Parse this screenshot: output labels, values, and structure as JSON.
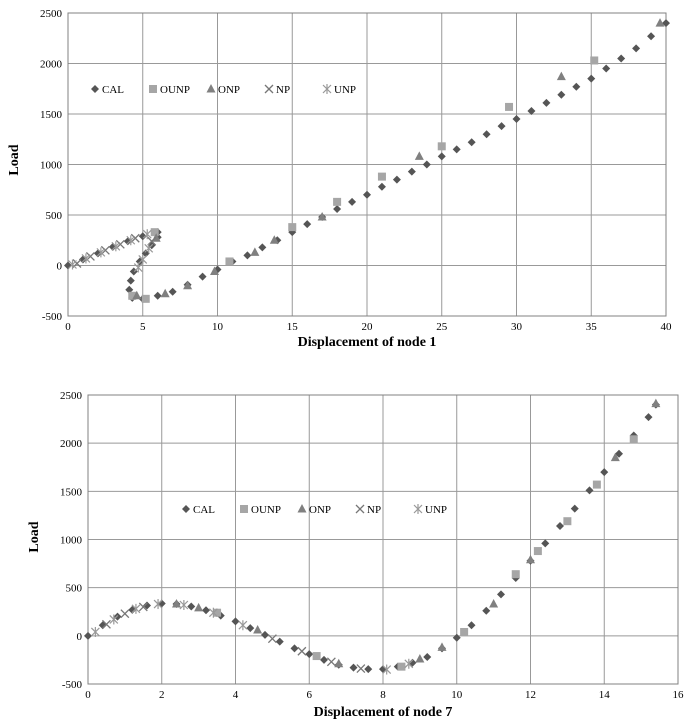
{
  "colors": {
    "CAL": "#555555",
    "OUNP": "#a6a6a6",
    "ONP": "#808080",
    "NP": "#777777",
    "UNP": "#999999",
    "grid": "#999999"
  },
  "chart_data": [
    {
      "type": "scatter",
      "title": "",
      "xlabel": "Displacement of node 1",
      "ylabel": "Load",
      "xlim": [
        0,
        40
      ],
      "ylim": [
        -500,
        2500
      ],
      "xticks": [
        "0",
        "5",
        "10",
        "15",
        "20",
        "25",
        "30",
        "35",
        "40"
      ],
      "yticks": [
        "-500",
        "0",
        "500",
        "1000",
        "1500",
        "2000",
        "2500"
      ],
      "grid": true,
      "legend": {
        "placement": "upper-left",
        "entries": [
          "CAL",
          "OUNP",
          "ONP",
          "NP",
          "UNP"
        ]
      },
      "series": [
        {
          "name": "CAL",
          "marker": "diamond",
          "points": [
            [
              0,
              0
            ],
            [
              1,
              60
            ],
            [
              2,
              120
            ],
            [
              3,
              185
            ],
            [
              4,
              240
            ],
            [
              5,
              290
            ],
            [
              6,
              330
            ],
            [
              6,
              280
            ],
            [
              5.6,
              200
            ],
            [
              5.2,
              120
            ],
            [
              4.8,
              40
            ],
            [
              4.4,
              -60
            ],
            [
              4.2,
              -150
            ],
            [
              4.1,
              -240
            ],
            [
              4.3,
              -320
            ],
            [
              5,
              -330
            ],
            [
              6,
              -300
            ],
            [
              7,
              -260
            ],
            [
              8,
              -190
            ],
            [
              9,
              -110
            ],
            [
              10,
              -40
            ],
            [
              11,
              40
            ],
            [
              12,
              100
            ],
            [
              13,
              180
            ],
            [
              14,
              250
            ],
            [
              15,
              330
            ],
            [
              16,
              410
            ],
            [
              17,
              480
            ],
            [
              18,
              560
            ],
            [
              19,
              630
            ],
            [
              20,
              700
            ],
            [
              21,
              780
            ],
            [
              22,
              850
            ],
            [
              23,
              930
            ],
            [
              24,
              1000
            ],
            [
              25,
              1080
            ],
            [
              26,
              1150
            ],
            [
              27,
              1220
            ],
            [
              28,
              1300
            ],
            [
              29,
              1380
            ],
            [
              30,
              1450
            ],
            [
              31,
              1530
            ],
            [
              32,
              1610
            ],
            [
              33,
              1690
            ],
            [
              34,
              1770
            ],
            [
              35,
              1850
            ],
            [
              36,
              1950
            ],
            [
              37,
              2050
            ],
            [
              38,
              2150
            ],
            [
              39,
              2270
            ],
            [
              40,
              2400
            ]
          ]
        },
        {
          "name": "OUNP",
          "marker": "square",
          "points": [
            [
              5.8,
              330
            ],
            [
              4.3,
              -300
            ],
            [
              5.2,
              -330
            ],
            [
              10.8,
              40
            ],
            [
              15,
              380
            ],
            [
              18,
              630
            ],
            [
              21,
              880
            ],
            [
              25,
              1180
            ],
            [
              29.5,
              1570
            ],
            [
              35.2,
              2030
            ]
          ]
        },
        {
          "name": "ONP",
          "marker": "triangle",
          "points": [
            [
              5.9,
              270
            ],
            [
              4.6,
              -300
            ],
            [
              6.5,
              -280
            ],
            [
              8,
              -200
            ],
            [
              9.8,
              -60
            ],
            [
              12.5,
              130
            ],
            [
              13.8,
              250
            ],
            [
              17,
              480
            ],
            [
              23.5,
              1080
            ],
            [
              33,
              1870
            ],
            [
              39.6,
              2400
            ]
          ]
        },
        {
          "name": "NP",
          "marker": "x",
          "points": [
            [
              0.6,
              20
            ],
            [
              1.5,
              90
            ],
            [
              2.5,
              150
            ],
            [
              3.5,
              210
            ],
            [
              4.5,
              270
            ],
            [
              5.6,
              240
            ]
          ]
        },
        {
          "name": "UNP",
          "marker": "asterisk",
          "points": [
            [
              0.3,
              10
            ],
            [
              1.2,
              70
            ],
            [
              2.2,
              130
            ],
            [
              3.2,
              190
            ],
            [
              4.2,
              250
            ],
            [
              5.3,
              310
            ],
            [
              5.4,
              170
            ],
            [
              5,
              60
            ],
            [
              4.7,
              -20
            ]
          ]
        }
      ]
    },
    {
      "type": "scatter",
      "title": "",
      "xlabel": "Displacement of node 7",
      "ylabel": "Load",
      "xlim": [
        0,
        16
      ],
      "ylim": [
        -500,
        2500
      ],
      "xticks": [
        "0",
        "2",
        "4",
        "6",
        "8",
        "10",
        "12",
        "14",
        "16"
      ],
      "yticks": [
        "-500",
        "0",
        "500",
        "1000",
        "1500",
        "2000",
        "2500"
      ],
      "grid": true,
      "legend": {
        "placement": "center",
        "entries": [
          "CAL",
          "OUNP",
          "ONP",
          "NP",
          "UNP"
        ]
      },
      "series": [
        {
          "name": "CAL",
          "marker": "diamond",
          "points": [
            [
              0,
              0
            ],
            [
              0.4,
              110
            ],
            [
              0.8,
              200
            ],
            [
              1.2,
              270
            ],
            [
              1.6,
              315
            ],
            [
              2,
              335
            ],
            [
              2.4,
              330
            ],
            [
              2.8,
              305
            ],
            [
              3.2,
              265
            ],
            [
              3.6,
              210
            ],
            [
              4,
              150
            ],
            [
              4.4,
              80
            ],
            [
              4.8,
              10
            ],
            [
              5.2,
              -60
            ],
            [
              5.6,
              -130
            ],
            [
              6,
              -190
            ],
            [
              6.4,
              -250
            ],
            [
              6.8,
              -300
            ],
            [
              7.2,
              -330
            ],
            [
              7.6,
              -345
            ],
            [
              8,
              -345
            ],
            [
              8.4,
              -320
            ],
            [
              8.8,
              -280
            ],
            [
              9.2,
              -220
            ],
            [
              9.6,
              -130
            ],
            [
              10,
              -20
            ],
            [
              10.4,
              110
            ],
            [
              10.8,
              260
            ],
            [
              11.2,
              430
            ],
            [
              11.6,
              600
            ],
            [
              12,
              780
            ],
            [
              12.4,
              960
            ],
            [
              12.8,
              1140
            ],
            [
              13.2,
              1320
            ],
            [
              13.6,
              1510
            ],
            [
              14,
              1700
            ],
            [
              14.4,
              1890
            ],
            [
              14.8,
              2080
            ],
            [
              15.2,
              2270
            ],
            [
              15.4,
              2400
            ]
          ]
        },
        {
          "name": "OUNP",
          "marker": "square",
          "points": [
            [
              3.5,
              240
            ],
            [
              6.2,
              -210
            ],
            [
              8.5,
              -320
            ],
            [
              10.2,
              40
            ],
            [
              11.6,
              640
            ],
            [
              12.2,
              880
            ],
            [
              13,
              1190
            ],
            [
              13.8,
              1570
            ],
            [
              14.8,
              2040
            ]
          ]
        },
        {
          "name": "ONP",
          "marker": "triangle",
          "points": [
            [
              2.4,
              330
            ],
            [
              3,
              290
            ],
            [
              4.6,
              60
            ],
            [
              6.8,
              -290
            ],
            [
              9,
              -240
            ],
            [
              9.6,
              -120
            ],
            [
              11,
              330
            ],
            [
              12,
              790
            ],
            [
              14.3,
              1850
            ],
            [
              15.4,
              2410
            ]
          ]
        },
        {
          "name": "NP",
          "marker": "x",
          "points": [
            [
              0.5,
              120
            ],
            [
              1,
              230
            ],
            [
              1.5,
              300
            ],
            [
              5,
              -30
            ],
            [
              5.8,
              -160
            ],
            [
              6.6,
              -270
            ],
            [
              7.4,
              -340
            ]
          ]
        },
        {
          "name": "UNP",
          "marker": "asterisk",
          "points": [
            [
              0.2,
              40
            ],
            [
              0.7,
              170
            ],
            [
              1.3,
              280
            ],
            [
              1.9,
              330
            ],
            [
              2.6,
              320
            ],
            [
              3.4,
              240
            ],
            [
              4.2,
              110
            ],
            [
              8.1,
              -350
            ],
            [
              8.7,
              -290
            ]
          ]
        }
      ]
    }
  ]
}
